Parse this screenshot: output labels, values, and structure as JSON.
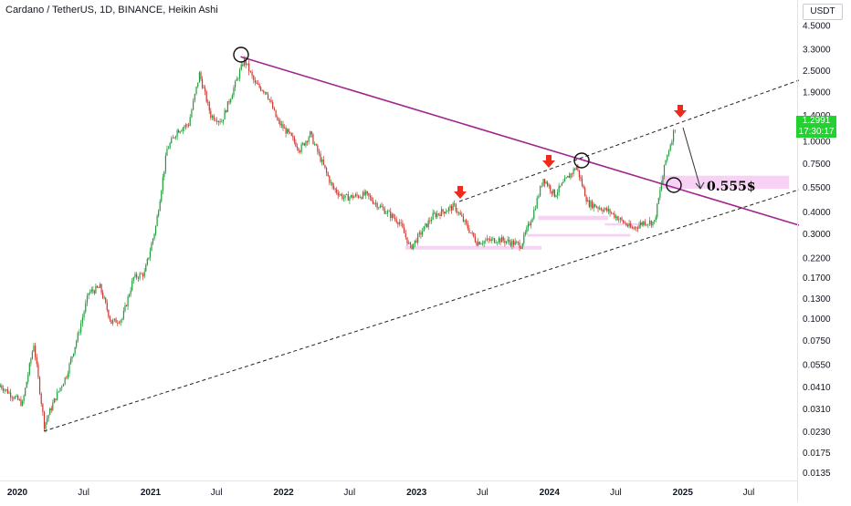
{
  "header": {
    "title": "Cardano / TetherUS, 1D, BINANCE, Heikin Ashi",
    "currency": "USDT"
  },
  "price_tag": {
    "price": "1.2991",
    "countdown": "17:30:17"
  },
  "colors": {
    "up": "#26a69a",
    "up_green": "#1e9e3a",
    "down": "#d0342c",
    "trendline": "#a0268f",
    "zones": "#f6c7f1",
    "arrows": "#ee2a1b",
    "price_tag": "#22d22e"
  },
  "chart_data": {
    "type": "candlestick",
    "title": "Cardano / TetherUS, 1D, BINANCE, Heikin Ashi",
    "y_scale": "log",
    "ylim": [
      0.0135,
      4.5
    ],
    "y_ticks": [
      "4.5000",
      "3.3000",
      "2.5000",
      "1.9000",
      "1.4000",
      "1.0000",
      "0.7500",
      "0.5500",
      "0.4000",
      "0.3000",
      "0.2200",
      "0.1700",
      "0.1300",
      "0.1000",
      "0.0750",
      "0.0550",
      "0.0410",
      "0.0310",
      "0.0230",
      "0.0175",
      "0.0135"
    ],
    "x_ticks": [
      {
        "label": "2020",
        "bold": true
      },
      {
        "label": "Jul",
        "bold": false
      },
      {
        "label": "2021",
        "bold": true
      },
      {
        "label": "Jul",
        "bold": false
      },
      {
        "label": "2022",
        "bold": true
      },
      {
        "label": "Jul",
        "bold": false
      },
      {
        "label": "2023",
        "bold": true
      },
      {
        "label": "Jul",
        "bold": false
      },
      {
        "label": "2024",
        "bold": true
      },
      {
        "label": "Jul",
        "bold": false
      },
      {
        "label": "2025",
        "bold": true
      },
      {
        "label": "Jul",
        "bold": false
      }
    ],
    "series": [
      {
        "values": [
          [
            "2019-11",
            0.042
          ],
          [
            "2020-01",
            0.033
          ],
          [
            "2020-02",
            0.072
          ],
          [
            "2020-03",
            0.025
          ],
          [
            "2020-04",
            0.036
          ],
          [
            "2020-05",
            0.048
          ],
          [
            "2020-06",
            0.08
          ],
          [
            "2020-07",
            0.14
          ],
          [
            "2020-08",
            0.15
          ],
          [
            "2020-09",
            0.095
          ],
          [
            "2020-10",
            0.1
          ],
          [
            "2020-11",
            0.17
          ],
          [
            "2020-12",
            0.18
          ],
          [
            "2021-01",
            0.33
          ],
          [
            "2021-02",
            0.9
          ],
          [
            "2021-03",
            1.15
          ],
          [
            "2021-04",
            1.25
          ],
          [
            "2021-05",
            2.4
          ],
          [
            "2021-06",
            1.4
          ],
          [
            "2021-07",
            1.3
          ],
          [
            "2021-09",
            2.9
          ],
          [
            "2021-10",
            2.1
          ],
          [
            "2021-11",
            1.9
          ],
          [
            "2021-12",
            1.3
          ],
          [
            "2022-01",
            1.1
          ],
          [
            "2022-02",
            0.9
          ],
          [
            "2022-03",
            1.1
          ],
          [
            "2022-05",
            0.55
          ],
          [
            "2022-06",
            0.48
          ],
          [
            "2022-08",
            0.5
          ],
          [
            "2022-09",
            0.44
          ],
          [
            "2022-11",
            0.35
          ],
          [
            "2022-12",
            0.25
          ],
          [
            "2023-02",
            0.38
          ],
          [
            "2023-04",
            0.43
          ],
          [
            "2023-06",
            0.27
          ],
          [
            "2023-08",
            0.28
          ],
          [
            "2023-10",
            0.26
          ],
          [
            "2023-11",
            0.38
          ],
          [
            "2023-12",
            0.62
          ],
          [
            "2024-01",
            0.5
          ],
          [
            "2024-03",
            0.72
          ],
          [
            "2024-04",
            0.45
          ],
          [
            "2024-06",
            0.4
          ],
          [
            "2024-08",
            0.32
          ],
          [
            "2024-09",
            0.35
          ],
          [
            "2024-10",
            0.35
          ],
          [
            "2024-11",
            0.78
          ],
          [
            "2024-12",
            1.299
          ]
        ]
      }
    ],
    "annotations": {
      "target_label": "0.555$",
      "current_price": "1.2991"
    }
  }
}
